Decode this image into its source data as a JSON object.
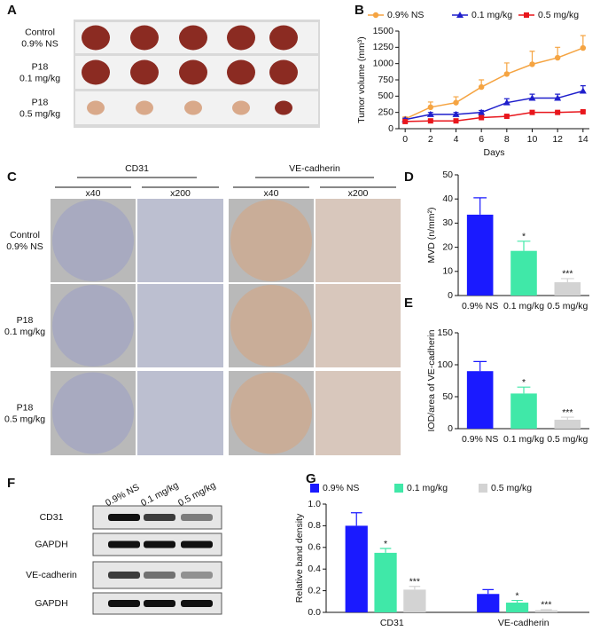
{
  "panel_labels": [
    "A",
    "B",
    "C",
    "D",
    "E",
    "F",
    "G"
  ],
  "panel_a": {
    "row_labels": [
      [
        "Control",
        "0.9% NS"
      ],
      [
        "P18",
        "0.1 mg/kg"
      ],
      [
        "P18",
        "0.5 mg/kg"
      ]
    ]
  },
  "panel_c": {
    "groups": [
      "CD31",
      "VE-cadherin"
    ],
    "magnifications": [
      "x40",
      "x200",
      "x40",
      "x200"
    ],
    "row_labels": [
      [
        "Control",
        "0.9% NS"
      ],
      [
        "P18",
        "0.1 mg/kg"
      ],
      [
        "P18",
        "0.5 mg/kg"
      ]
    ]
  },
  "panel_f": {
    "lanes": [
      "0.9% NS",
      "0.1 mg/kg",
      "0.5 mg/kg"
    ],
    "bands": [
      "CD31",
      "GAPDH",
      "VE-cadherin",
      "GAPDH"
    ]
  },
  "chart_data": [
    {
      "type": "line",
      "ylabel": "Tumor  volume (mm³)",
      "xlabel": "Days",
      "x": [
        0,
        2,
        4,
        6,
        8,
        10,
        12,
        14
      ],
      "xlim": [
        -0.5,
        14.5
      ],
      "xticks": [
        0,
        2,
        4,
        6,
        8,
        10,
        12,
        14
      ],
      "ylim": [
        0,
        1500
      ],
      "yticks": [
        0,
        250,
        500,
        750,
        1000,
        1250,
        1500
      ],
      "series": [
        {
          "name": "0.9% NS",
          "color": "#f5a442",
          "marker": "circle",
          "values": [
            150,
            330,
            400,
            640,
            840,
            990,
            1090,
            1240
          ],
          "errors": [
            30,
            80,
            90,
            110,
            170,
            200,
            160,
            190
          ]
        },
        {
          "name": "0.1 mg/kg",
          "color": "#1f1fcc",
          "marker": "triangle",
          "values": [
            140,
            220,
            220,
            250,
            400,
            470,
            470,
            580
          ],
          "errors": [
            20,
            30,
            30,
            30,
            60,
            60,
            60,
            80
          ]
        },
        {
          "name": "0.5 mg/kg",
          "color": "#e8161c",
          "marker": "square",
          "values": [
            110,
            120,
            120,
            170,
            190,
            250,
            250,
            260
          ],
          "errors": [
            10,
            10,
            10,
            15,
            15,
            20,
            15,
            15
          ]
        }
      ]
    },
    {
      "type": "bar",
      "ylabel": "MVD (n/mm²)",
      "categories": [
        "0.9% NS",
        "0.1 mg/kg",
        "0.5 mg/kg"
      ],
      "values": [
        33.5,
        18.5,
        5.5
      ],
      "errors": [
        7,
        4,
        1.5
      ],
      "significance": [
        null,
        "*",
        "***"
      ],
      "colors": [
        "#1a1aff",
        "#40e8a8",
        "#d3d3d3"
      ],
      "ylim": [
        0,
        50
      ],
      "yticks": [
        0,
        10,
        20,
        30,
        40,
        50
      ]
    },
    {
      "type": "bar",
      "ylabel": "IOD/area of VE-cadherin",
      "categories": [
        "0.9% NS",
        "0.1 mg/kg",
        "0.5 mg/kg"
      ],
      "values": [
        90,
        55,
        14
      ],
      "errors": [
        15,
        10,
        4
      ],
      "significance": [
        null,
        "*",
        "***"
      ],
      "colors": [
        "#1a1aff",
        "#40e8a8",
        "#d3d3d3"
      ],
      "ylim": [
        0,
        150
      ],
      "yticks": [
        0,
        50,
        100,
        150
      ]
    },
    {
      "type": "bar",
      "ylabel": "Relative band density",
      "categories": [
        "CD31",
        "VE-cadherin"
      ],
      "ylim": [
        0,
        1.0
      ],
      "yticks": [
        {
          "value": 0,
          "label": "0.0"
        },
        0.2,
        0.4,
        0.6,
        0.8,
        {
          "value": 1,
          "label": "1.0"
        }
      ],
      "series": [
        {
          "name": "0.9% NS",
          "color": "#1a1aff",
          "values": [
            0.8,
            0.17
          ],
          "errors": [
            0.12,
            0.04
          ],
          "significance": [
            null,
            null
          ]
        },
        {
          "name": "0.1 mg/kg",
          "color": "#40e8a8",
          "values": [
            0.55,
            0.09
          ],
          "errors": [
            0.04,
            0.02
          ],
          "significance": [
            "*",
            "*"
          ]
        },
        {
          "name": "0.5 mg/kg",
          "color": "#d3d3d3",
          "values": [
            0.21,
            0.02
          ],
          "errors": [
            0.03,
            0.005
          ],
          "significance": [
            "***",
            "***"
          ]
        }
      ]
    }
  ]
}
